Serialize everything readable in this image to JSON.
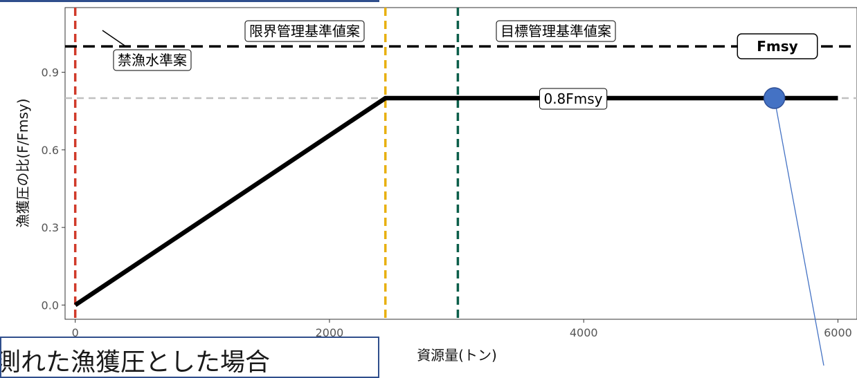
{
  "chart_data": {
    "type": "line",
    "xlabel": "資源量(トン)",
    "ylabel": "漁獲圧の比(F/Fmsy)",
    "xlim": [
      -80,
      6150
    ],
    "ylim": [
      -0.055,
      1.15
    ],
    "x_ticks": [
      0,
      2000,
      4000,
      6000
    ],
    "x_tick_labels": [
      "0",
      "2000",
      "4000",
      "6000"
    ],
    "y_ticks": [
      0.0,
      0.3,
      0.6,
      0.9
    ],
    "y_tick_labels": [
      "0.0",
      "0.3",
      "0.6",
      "0.9"
    ],
    "grid": false,
    "series": [
      {
        "values": [
          [
            0,
            0
          ],
          [
            2440,
            0.8
          ],
          [
            6000,
            0.8
          ]
        ],
        "color": "#000000"
      }
    ],
    "hlines": [
      {
        "y": 1.0,
        "color": "#000000",
        "style": "dashed"
      },
      {
        "y": 0.8,
        "color": "#c0c0c0",
        "style": "dashed"
      }
    ],
    "vlines": [
      {
        "x": 0,
        "color": "#d03a2a",
        "style": "dashed"
      },
      {
        "x": 2440,
        "color": "#e8b010",
        "style": "dashed"
      },
      {
        "x": 3010,
        "color": "#0b5e4a",
        "style": "dashed"
      }
    ],
    "point": {
      "x": 5500,
      "y": 0.8,
      "color": "#4472c4"
    },
    "annotations": {
      "limit_ref": "限界管理基準値案",
      "target_ref": "目標管理基準値案",
      "ban_ref": "禁漁水準案",
      "fmsy": "Fmsy",
      "f08": "0.8Fmsy"
    }
  },
  "caption": {
    "text": "測れた漁獲圧とした場合"
  }
}
